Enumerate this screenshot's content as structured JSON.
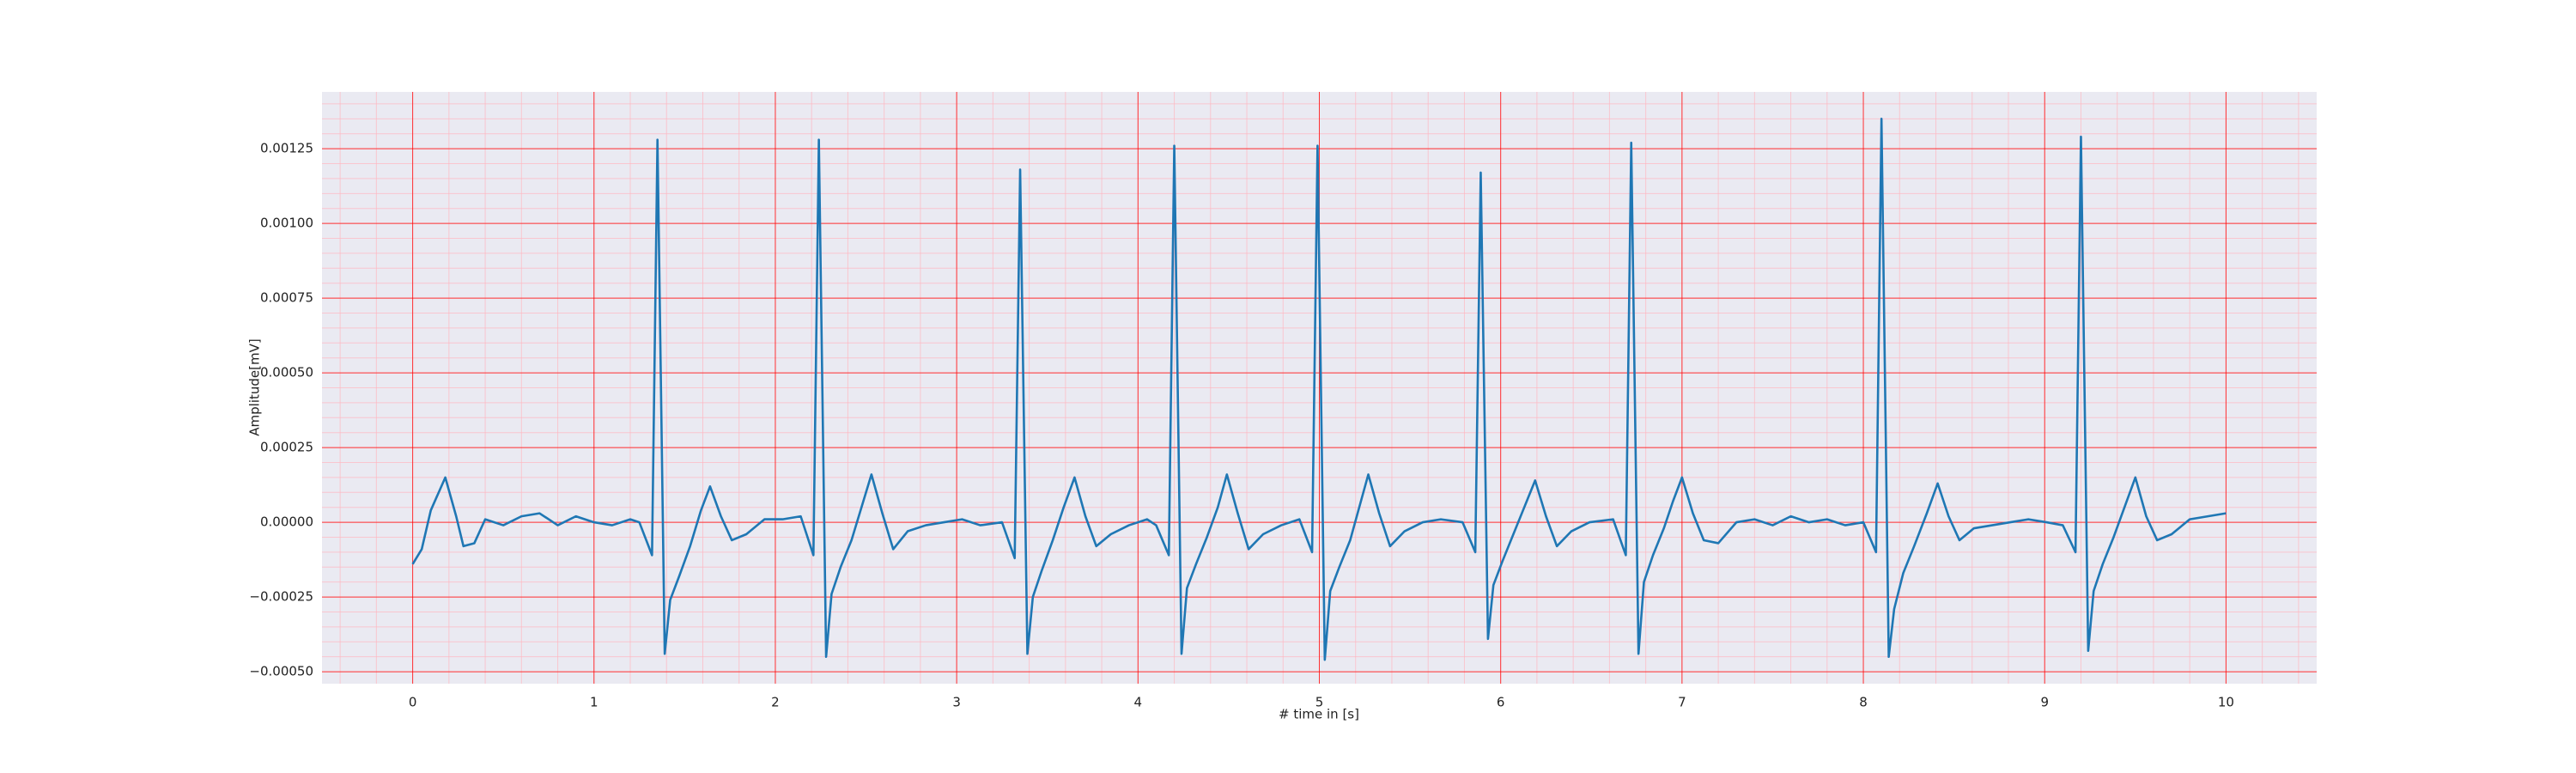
{
  "chart_data": {
    "type": "line",
    "xlabel": "# time in [s]",
    "ylabel": "Amplitude[mV]",
    "color": "#1f77b4",
    "grid": true,
    "minor_grid": true,
    "xlim": [
      -0.5,
      10.5
    ],
    "xticks": [
      0,
      1,
      2,
      3,
      4,
      5,
      6,
      7,
      8,
      9,
      10
    ],
    "ylim": [
      -0.00054,
      0.00144
    ],
    "yticks": [
      {
        "value": -0.0005,
        "label": "−0.00050"
      },
      {
        "value": -0.00025,
        "label": "−0.00025"
      },
      {
        "value": 0,
        "label": "0.00000"
      },
      {
        "value": 0.00025,
        "label": "0.00025"
      },
      {
        "value": 0.0005,
        "label": "0.00050"
      },
      {
        "value": 0.00075,
        "label": "0.00075"
      },
      {
        "value": 0.001,
        "label": "0.00100"
      },
      {
        "value": 0.00125,
        "label": "0.00125"
      }
    ],
    "x": [
      0,
      0.05,
      0.1,
      0.18,
      0.24,
      0.28,
      0.34,
      0.4,
      0.5,
      0.6,
      0.7,
      0.8,
      0.9,
      1.0,
      1.1,
      1.2,
      1.25,
      1.32,
      1.35,
      1.39,
      1.42,
      1.47,
      1.53,
      1.59,
      1.64,
      1.7,
      1.76,
      1.84,
      1.94,
      2.04,
      2.14,
      2.21,
      2.24,
      2.28,
      2.31,
      2.36,
      2.42,
      2.48,
      2.53,
      2.59,
      2.65,
      2.73,
      2.83,
      2.93,
      3.03,
      3.13,
      3.25,
      3.32,
      3.35,
      3.39,
      3.42,
      3.47,
      3.53,
      3.59,
      3.65,
      3.71,
      3.77,
      3.85,
      3.95,
      4.05,
      4.1,
      4.17,
      4.2,
      4.24,
      4.27,
      4.32,
      4.38,
      4.44,
      4.49,
      4.55,
      4.61,
      4.69,
      4.79,
      4.89,
      4.96,
      4.99,
      5.03,
      5.06,
      5.11,
      5.17,
      5.22,
      5.27,
      5.33,
      5.39,
      5.47,
      5.57,
      5.67,
      5.79,
      5.86,
      5.89,
      5.93,
      5.96,
      6.01,
      6.07,
      6.13,
      6.19,
      6.25,
      6.31,
      6.39,
      6.49,
      6.62,
      6.69,
      6.72,
      6.76,
      6.79,
      6.84,
      6.9,
      6.95,
      7.0,
      7.06,
      7.12,
      7.2,
      7.3,
      7.4,
      7.5,
      7.6,
      7.7,
      7.8,
      7.9,
      8.0,
      8.07,
      8.1,
      8.14,
      8.17,
      8.22,
      8.28,
      8.35,
      8.41,
      8.47,
      8.53,
      8.61,
      8.71,
      8.81,
      8.91,
      9.01,
      9.1,
      9.17,
      9.2,
      9.24,
      9.27,
      9.32,
      9.38,
      9.44,
      9.5,
      9.56,
      9.62,
      9.7,
      9.8,
      9.9,
      10.0
    ],
    "values": [
      -0.00014,
      -9e-05,
      4e-05,
      0.00015,
      2e-05,
      -8e-05,
      -7e-05,
      1e-05,
      -1e-05,
      2e-05,
      3e-05,
      -1e-05,
      2e-05,
      0.0,
      -1e-05,
      1e-05,
      0.0,
      -0.00011,
      0.00128,
      -0.00044,
      -0.00026,
      -0.00018,
      -8e-05,
      4e-05,
      0.00012,
      2e-05,
      -6e-05,
      -4e-05,
      1e-05,
      1e-05,
      2e-05,
      -0.00011,
      0.00128,
      -0.00045,
      -0.00024,
      -0.00015,
      -6e-05,
      6e-05,
      0.00016,
      3e-05,
      -9e-05,
      -3e-05,
      -1e-05,
      0.0,
      1e-05,
      -1e-05,
      0.0,
      -0.00012,
      0.00118,
      -0.00044,
      -0.00025,
      -0.00016,
      -6e-05,
      5e-05,
      0.00015,
      2e-05,
      -8e-05,
      -4e-05,
      -1e-05,
      1e-05,
      -1e-05,
      -0.00011,
      0.00126,
      -0.00044,
      -0.00022,
      -0.00014,
      -5e-05,
      5e-05,
      0.00016,
      3e-05,
      -9e-05,
      -4e-05,
      -1e-05,
      1e-05,
      -0.0001,
      0.00126,
      -0.00046,
      -0.00023,
      -0.00015,
      -6e-05,
      5e-05,
      0.00016,
      3e-05,
      -8e-05,
      -3e-05,
      0.0,
      1e-05,
      0.0,
      -0.0001,
      0.00117,
      -0.00039,
      -0.00021,
      -0.00013,
      -4e-05,
      5e-05,
      0.00014,
      2e-05,
      -8e-05,
      -3e-05,
      0.0,
      1e-05,
      -0.00011,
      0.00127,
      -0.00044,
      -0.0002,
      -0.00011,
      -2e-05,
      7e-05,
      0.00015,
      3e-05,
      -6e-05,
      -7e-05,
      0.0,
      1e-05,
      -1e-05,
      2e-05,
      0.0,
      1e-05,
      -1e-05,
      0.0,
      -0.0001,
      0.00135,
      -0.00045,
      -0.00029,
      -0.00017,
      -8e-05,
      3e-05,
      0.00013,
      2e-05,
      -6e-05,
      -2e-05,
      -1e-05,
      0.0,
      1e-05,
      0.0,
      -1e-05,
      -0.0001,
      0.00129,
      -0.00043,
      -0.00023,
      -0.00014,
      -5e-05,
      5e-05,
      0.00015,
      2e-05,
      -6e-05,
      -4e-05,
      1e-05,
      2e-05,
      3e-05
    ]
  }
}
